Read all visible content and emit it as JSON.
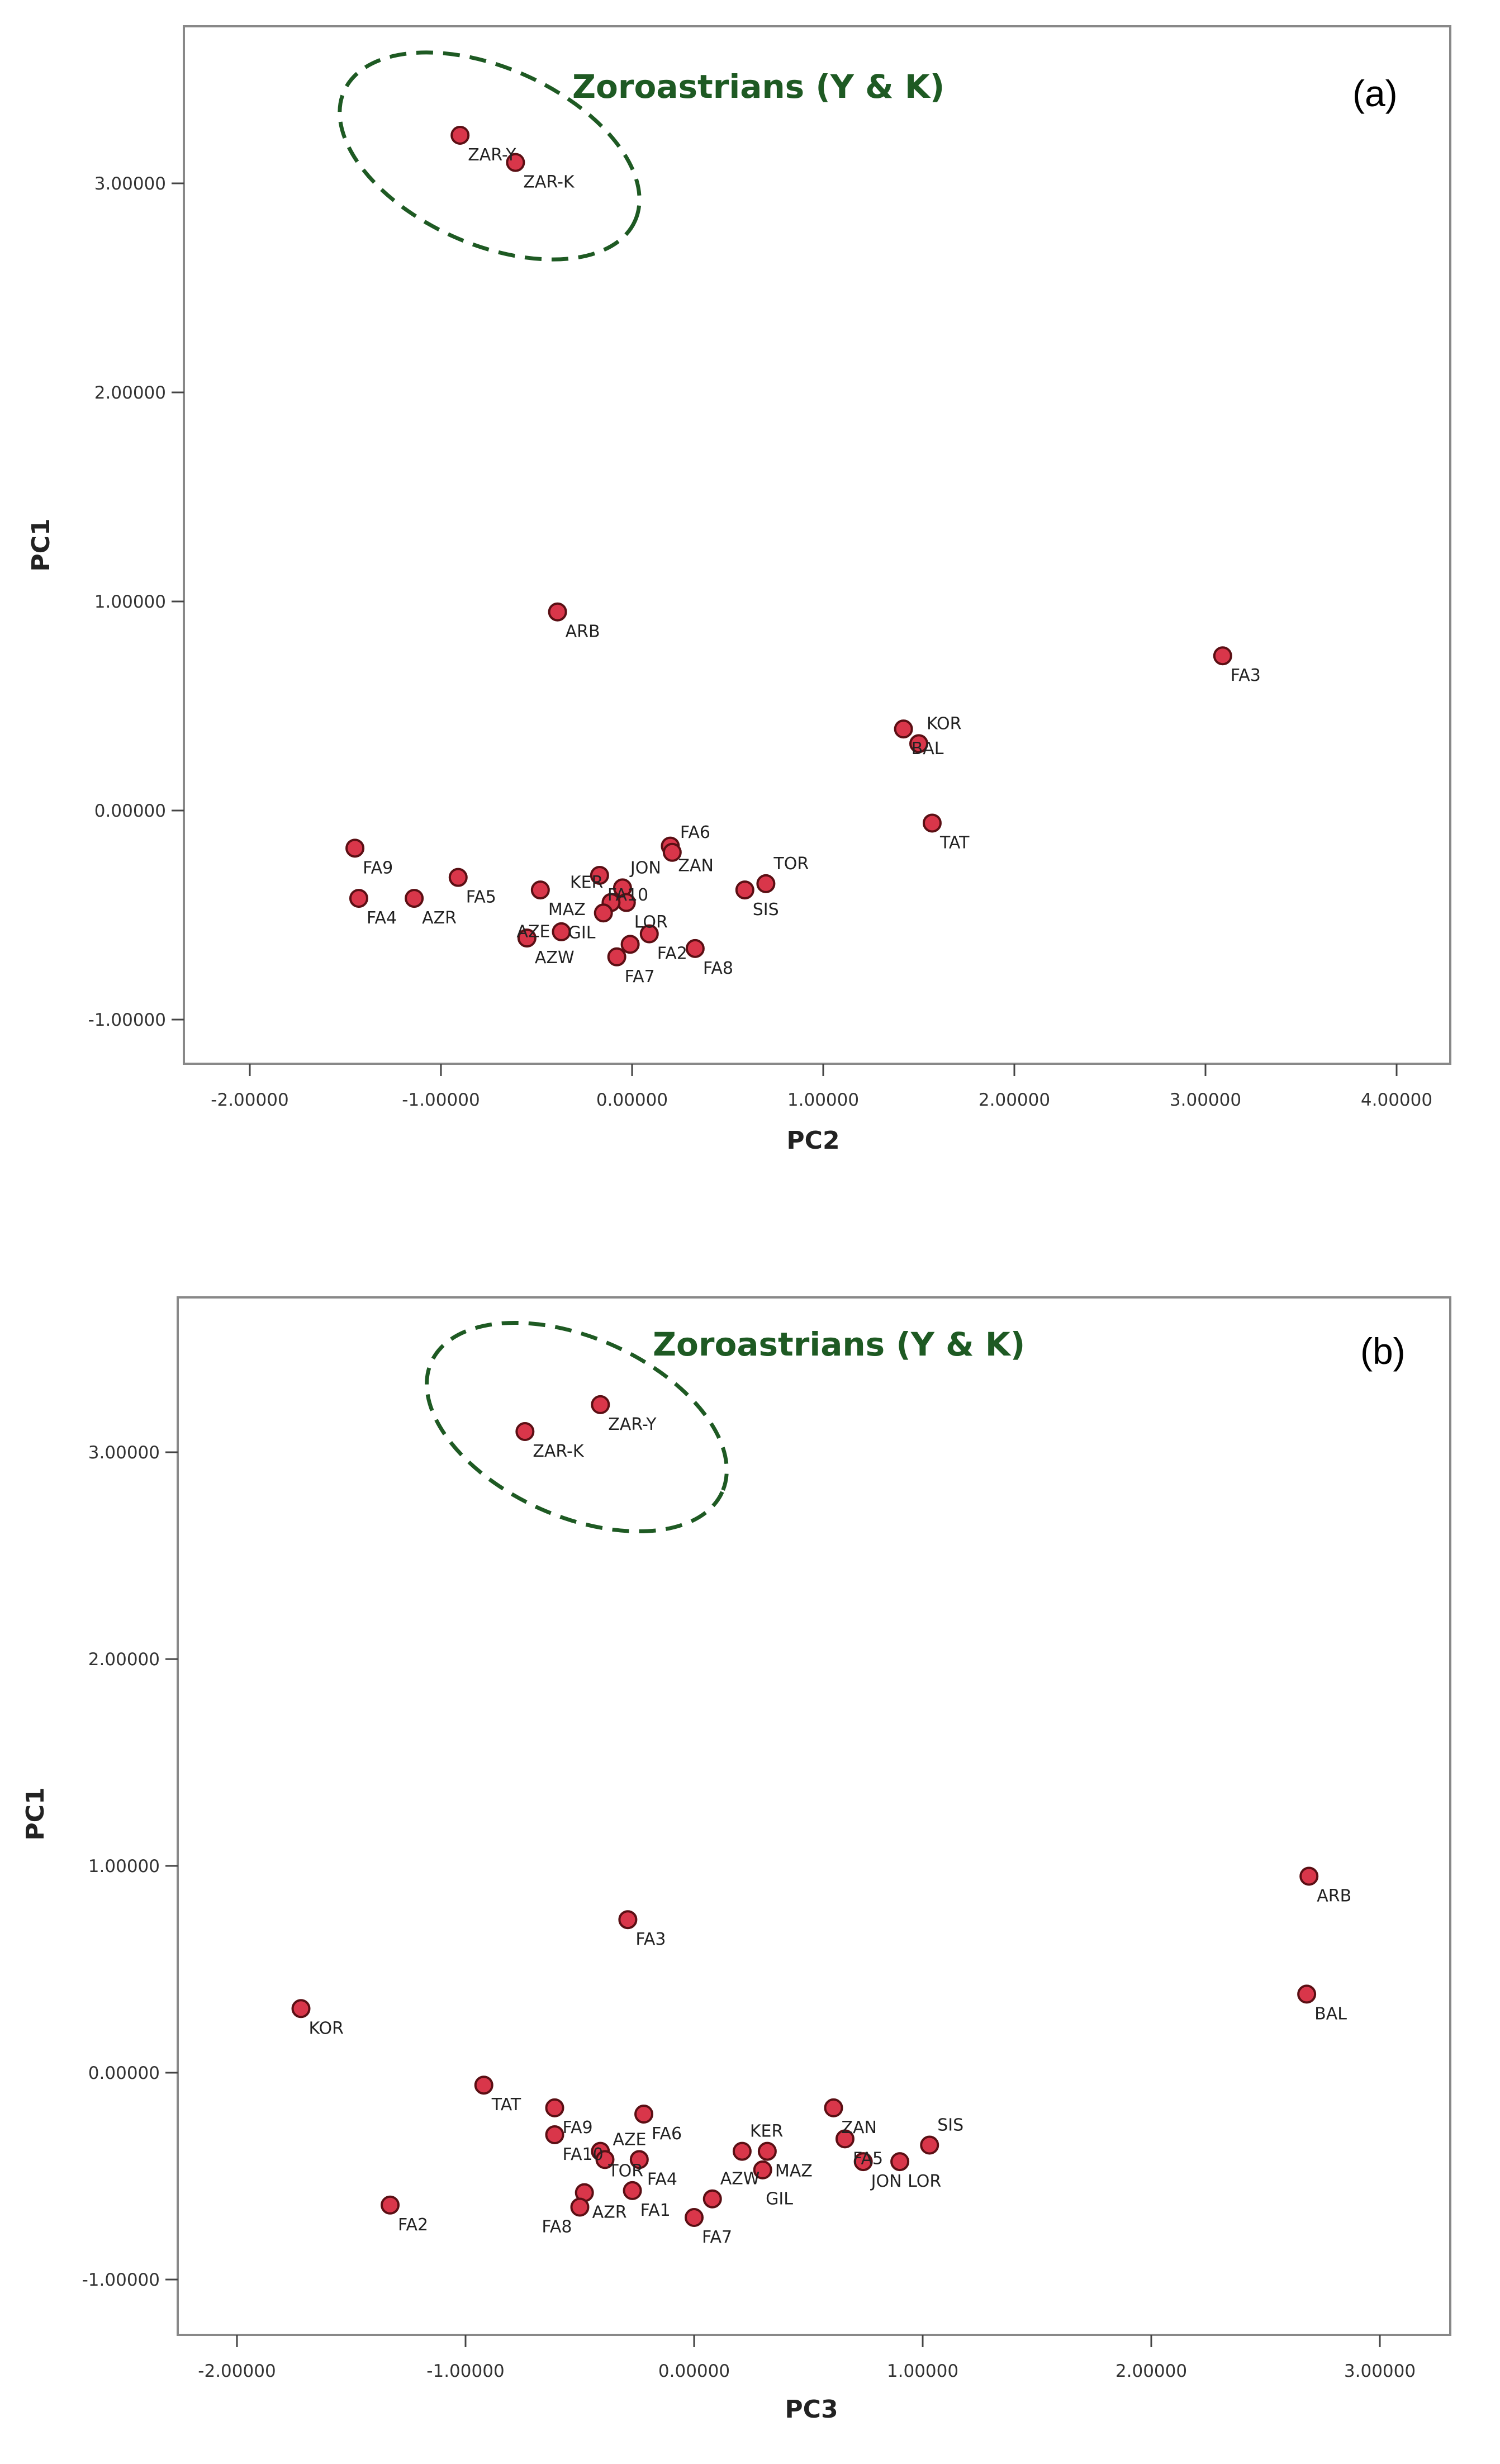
{
  "colors": {
    "point_fill": "#d9364a",
    "point_stroke": "#5a0f14",
    "annotation": "#1e5a23",
    "frame": "#888888"
  },
  "chart_data": [
    {
      "type": "scatter",
      "panel_label": "(a)",
      "xlabel": "PC2",
      "ylabel": "PC1",
      "xlim": [
        -2.33,
        4.33
      ],
      "ylim": [
        -1.25,
        3.78
      ],
      "xticks": [
        "-2.00000",
        "-1.00000",
        "0.00000",
        "1.00000",
        "2.00000",
        "3.00000",
        "4.00000"
      ],
      "yticks": [
        "-1.00000",
        "0.00000",
        "1.00000",
        "2.00000",
        "3.00000"
      ],
      "grid": false,
      "annotation": "Zoroastrians (Y & K)",
      "points": [
        {
          "label": "ZAR-Y",
          "x": -0.9,
          "y": 3.23
        },
        {
          "label": "ZAR-K",
          "x": -0.61,
          "y": 3.1
        },
        {
          "label": "ARB",
          "x": -0.39,
          "y": 0.95
        },
        {
          "label": "FA3",
          "x": 3.09,
          "y": 0.74
        },
        {
          "label": "BAL",
          "x": 1.42,
          "y": 0.39
        },
        {
          "label": "KOR",
          "x": 1.5,
          "y": 0.32
        },
        {
          "label": "TAT",
          "x": 1.57,
          "y": -0.06
        },
        {
          "label": "ZAN",
          "x": 0.2,
          "y": -0.17
        },
        {
          "label": "FA6",
          "x": 0.21,
          "y": -0.2
        },
        {
          "label": "SIS",
          "x": 0.59,
          "y": -0.38
        },
        {
          "label": "TOR",
          "x": 0.7,
          "y": -0.35
        },
        {
          "label": "FA9",
          "x": -1.45,
          "y": -0.18
        },
        {
          "label": "FA5",
          "x": -0.91,
          "y": -0.32
        },
        {
          "label": "FA4",
          "x": -1.43,
          "y": -0.42
        },
        {
          "label": "AZR",
          "x": -1.14,
          "y": -0.42
        },
        {
          "label": "MAZ",
          "x": -0.48,
          "y": -0.38
        },
        {
          "label": "FA10",
          "x": -0.17,
          "y": -0.31
        },
        {
          "label": "JON",
          "x": -0.05,
          "y": -0.37
        },
        {
          "label": "LOR",
          "x": -0.03,
          "y": -0.44
        },
        {
          "label": "KER",
          "x": -0.11,
          "y": -0.44
        },
        {
          "label": "GIL",
          "x": -0.15,
          "y": -0.49
        },
        {
          "label": "FA2",
          "x": 0.09,
          "y": -0.59
        },
        {
          "label": "FA7",
          "x": -0.08,
          "y": -0.7
        },
        {
          "label": "",
          "x": -0.01,
          "y": -0.64
        },
        {
          "label": "FA8",
          "x": 0.33,
          "y": -0.66
        },
        {
          "label": "AZW",
          "x": -0.55,
          "y": -0.61
        },
        {
          "label": "AZE",
          "x": -0.37,
          "y": -0.58
        }
      ]
    },
    {
      "type": "scatter",
      "panel_label": "(b)",
      "xlabel": "PC3",
      "ylabel": "PC1",
      "xlim": [
        -2.25,
        3.3
      ],
      "ylim": [
        -1.25,
        3.7
      ],
      "xticks": [
        "-2.00000",
        "-1.00000",
        "0.00000",
        "1.00000",
        "2.00000",
        "3.00000"
      ],
      "yticks": [
        "-1.00000",
        "0.00000",
        "1.00000",
        "2.00000",
        "3.00000"
      ],
      "grid": false,
      "annotation": "Zoroastrians (Y & K)",
      "points": [
        {
          "label": "ZAR-Y",
          "x": -0.41,
          "y": 3.23
        },
        {
          "label": "ZAR-K",
          "x": -0.74,
          "y": 3.1
        },
        {
          "label": "FA3",
          "x": -0.29,
          "y": 0.74
        },
        {
          "label": "ARB",
          "x": 2.69,
          "y": 0.95
        },
        {
          "label": "BAL",
          "x": 2.68,
          "y": 0.38
        },
        {
          "label": "KOR",
          "x": -1.72,
          "y": 0.31
        },
        {
          "label": "TAT",
          "x": -0.92,
          "y": -0.06
        },
        {
          "label": "FA2",
          "x": -1.33,
          "y": -0.64
        },
        {
          "label": "FA9",
          "x": -0.61,
          "y": -0.17
        },
        {
          "label": "FA10",
          "x": -0.61,
          "y": -0.3
        },
        {
          "label": "FA6",
          "x": -0.22,
          "y": -0.2
        },
        {
          "label": "TOR",
          "x": -0.41,
          "y": -0.38
        },
        {
          "label": "AZE",
          "x": -0.39,
          "y": -0.42
        },
        {
          "label": "FA4",
          "x": -0.24,
          "y": -0.42
        },
        {
          "label": "AZR",
          "x": -0.48,
          "y": -0.58
        },
        {
          "label": "FA8",
          "x": -0.5,
          "y": -0.65
        },
        {
          "label": "FA1",
          "x": -0.27,
          "y": -0.57
        },
        {
          "label": "FA7",
          "x": 0.0,
          "y": -0.7
        },
        {
          "label": "AZW",
          "x": 0.08,
          "y": -0.61
        },
        {
          "label": "KER",
          "x": 0.21,
          "y": -0.38
        },
        {
          "label": "MAZ",
          "x": 0.32,
          "y": -0.38
        },
        {
          "label": "GIL",
          "x": 0.3,
          "y": -0.47
        },
        {
          "label": "ZAN",
          "x": 0.61,
          "y": -0.17
        },
        {
          "label": "FA5",
          "x": 0.66,
          "y": -0.32
        },
        {
          "label": "JON",
          "x": 0.74,
          "y": -0.43
        },
        {
          "label": "LOR",
          "x": 0.9,
          "y": -0.43
        },
        {
          "label": "SIS",
          "x": 1.03,
          "y": -0.35
        }
      ]
    }
  ]
}
